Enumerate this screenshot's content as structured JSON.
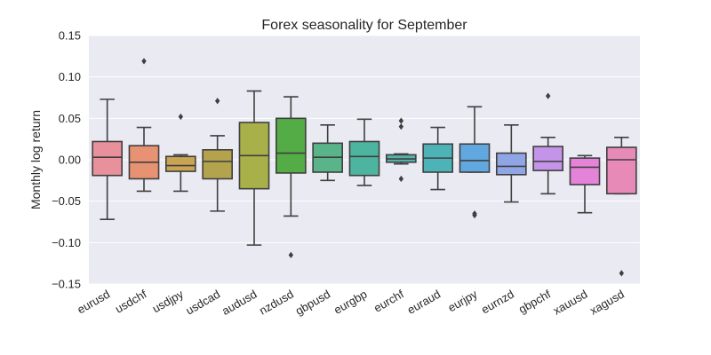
{
  "chart_data": {
    "type": "box",
    "title": "Forex seasonality for September",
    "xlabel": "",
    "ylabel": "Monthly log return",
    "ylim": [
      -0.15,
      0.15
    ],
    "yticks": [
      -0.15,
      -0.1,
      -0.05,
      0.0,
      0.05,
      0.1,
      0.15
    ],
    "ytick_labels": [
      "−0.15",
      "−0.10",
      "−0.05",
      "0.00",
      "0.05",
      "0.10",
      "0.15"
    ],
    "grid": true,
    "legend": "none",
    "categories": [
      "eurusd",
      "usdchf",
      "usdjpy",
      "usdcad",
      "audusd",
      "nzdusd",
      "gbpusd",
      "eurgbp",
      "eurchf",
      "euraud",
      "eurjpy",
      "eurnzd",
      "gbpchf",
      "xauusd",
      "xagusd"
    ],
    "boxes": [
      {
        "name": "eurusd",
        "color": "#e8909c",
        "whisker_low": -0.072,
        "q1": -0.019,
        "median": 0.003,
        "q3": 0.022,
        "whisker_high": 0.073,
        "outliers": []
      },
      {
        "name": "usdchf",
        "color": "#e79272",
        "whisker_low": -0.038,
        "q1": -0.023,
        "median": -0.003,
        "q3": 0.017,
        "whisker_high": 0.039,
        "outliers": [
          0.119
        ]
      },
      {
        "name": "usdjpy",
        "color": "#c9a453",
        "whisker_low": -0.038,
        "q1": -0.014,
        "median": -0.007,
        "q3": 0.004,
        "whisker_high": 0.006,
        "outliers": [
          0.052
        ]
      },
      {
        "name": "usdcad",
        "color": "#b3a34d",
        "whisker_low": -0.062,
        "q1": -0.023,
        "median": -0.002,
        "q3": 0.012,
        "whisker_high": 0.029,
        "outliers": [
          0.071
        ]
      },
      {
        "name": "audusd",
        "color": "#a8b04a",
        "whisker_low": -0.103,
        "q1": -0.035,
        "median": 0.005,
        "q3": 0.045,
        "whisker_high": 0.083,
        "outliers": []
      },
      {
        "name": "nzdusd",
        "color": "#54ac47",
        "whisker_low": -0.068,
        "q1": -0.016,
        "median": 0.008,
        "q3": 0.05,
        "whisker_high": 0.076,
        "outliers": [
          -0.115
        ]
      },
      {
        "name": "gbpusd",
        "color": "#59b48a",
        "whisker_low": -0.025,
        "q1": -0.015,
        "median": 0.003,
        "q3": 0.02,
        "whisker_high": 0.042,
        "outliers": []
      },
      {
        "name": "eurgbp",
        "color": "#4db59f",
        "whisker_low": -0.031,
        "q1": -0.019,
        "median": 0.004,
        "q3": 0.022,
        "whisker_high": 0.049,
        "outliers": []
      },
      {
        "name": "eurchf",
        "color": "#52b3ad",
        "whisker_low": -0.005,
        "q1": -0.003,
        "median": 0.001,
        "q3": 0.006,
        "whisker_high": 0.007,
        "outliers": [
          0.047,
          0.04,
          -0.023
        ]
      },
      {
        "name": "euraud",
        "color": "#4eb3b6",
        "whisker_low": -0.036,
        "q1": -0.015,
        "median": 0.002,
        "q3": 0.019,
        "whisker_high": 0.039,
        "outliers": []
      },
      {
        "name": "eurjpy",
        "color": "#62a8e0",
        "whisker_low": -0.015,
        "q1": -0.015,
        "median": -0.001,
        "q3": 0.019,
        "whisker_high": 0.064,
        "outliers": [
          -0.065,
          -0.067
        ]
      },
      {
        "name": "eurnzd",
        "color": "#90a5e6",
        "whisker_low": -0.051,
        "q1": -0.018,
        "median": -0.008,
        "q3": 0.008,
        "whisker_high": 0.042,
        "outliers": []
      },
      {
        "name": "gbpchf",
        "color": "#c394e8",
        "whisker_low": -0.041,
        "q1": -0.013,
        "median": -0.002,
        "q3": 0.016,
        "whisker_high": 0.027,
        "outliers": [
          0.077
        ]
      },
      {
        "name": "xauusd",
        "color": "#e583d9",
        "whisker_low": -0.064,
        "q1": -0.03,
        "median": -0.009,
        "q3": 0.002,
        "whisker_high": 0.005,
        "outliers": []
      },
      {
        "name": "xagusd",
        "color": "#e88ab8",
        "whisker_low": -0.041,
        "q1": -0.041,
        "median": 0.0,
        "q3": 0.015,
        "whisker_high": 0.027,
        "outliers": [
          -0.137
        ]
      }
    ]
  }
}
